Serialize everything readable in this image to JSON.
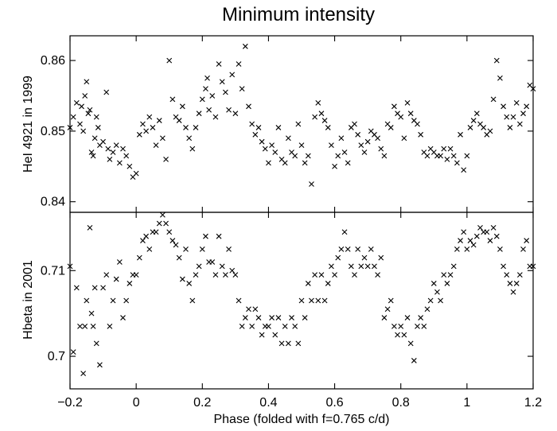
{
  "chart_data": [
    {
      "panel": "top",
      "type": "scatter",
      "title": "Minimum intensity",
      "ylabel": "HeI 4921 in 1999",
      "xlabel": "",
      "xlim": [
        -0.2,
        1.2
      ],
      "ylim": [
        0.8385,
        0.8635
      ],
      "x_ticks": [
        -0.2,
        0,
        0.2,
        0.4,
        0.6,
        0.8,
        1,
        1.2
      ],
      "y_ticks": [
        0.84,
        0.85,
        0.86
      ],
      "y_tick_labels": [
        "0.84",
        "0.85",
        "0.86"
      ],
      "marker": "x",
      "color": "#000000",
      "points": [
        [
          -0.2,
          0.8505
        ],
        [
          -0.19,
          0.852
        ],
        [
          -0.18,
          0.854
        ],
        [
          -0.17,
          0.851
        ],
        [
          -0.165,
          0.8535
        ],
        [
          -0.16,
          0.85
        ],
        [
          -0.155,
          0.855
        ],
        [
          -0.15,
          0.857
        ],
        [
          -0.145,
          0.8525
        ],
        [
          -0.14,
          0.853
        ],
        [
          -0.135,
          0.847
        ],
        [
          -0.13,
          0.8465
        ],
        [
          -0.125,
          0.849
        ],
        [
          -0.12,
          0.852
        ],
        [
          -0.115,
          0.8505
        ],
        [
          -0.11,
          0.848
        ],
        [
          -0.1,
          0.8485
        ],
        [
          -0.09,
          0.8555
        ],
        [
          -0.085,
          0.8475
        ],
        [
          -0.08,
          0.846
        ],
        [
          -0.07,
          0.847
        ],
        [
          -0.06,
          0.848
        ],
        [
          -0.05,
          0.8455
        ],
        [
          -0.04,
          0.8475
        ],
        [
          -0.03,
          0.8465
        ],
        [
          -0.02,
          0.845
        ],
        [
          -0.01,
          0.8435
        ],
        [
          0.0,
          0.844
        ],
        [
          0.01,
          0.8495
        ],
        [
          0.02,
          0.851
        ],
        [
          0.03,
          0.85
        ],
        [
          0.04,
          0.852
        ],
        [
          0.05,
          0.8505
        ],
        [
          0.06,
          0.848
        ],
        [
          0.07,
          0.8515
        ],
        [
          0.08,
          0.849
        ],
        [
          0.09,
          0.846
        ],
        [
          0.1,
          0.86
        ],
        [
          0.11,
          0.8545
        ],
        [
          0.12,
          0.852
        ],
        [
          0.13,
          0.8515
        ],
        [
          0.14,
          0.8535
        ],
        [
          0.15,
          0.8505
        ],
        [
          0.16,
          0.849
        ],
        [
          0.17,
          0.8475
        ],
        [
          0.18,
          0.8505
        ],
        [
          0.19,
          0.8525
        ],
        [
          0.2,
          0.8545
        ],
        [
          0.21,
          0.856
        ],
        [
          0.215,
          0.8575
        ],
        [
          0.22,
          0.853
        ],
        [
          0.23,
          0.855
        ],
        [
          0.24,
          0.852
        ],
        [
          0.25,
          0.8595
        ],
        [
          0.26,
          0.857
        ],
        [
          0.27,
          0.8555
        ],
        [
          0.28,
          0.853
        ],
        [
          0.29,
          0.858
        ],
        [
          0.3,
          0.8525
        ],
        [
          0.31,
          0.8595
        ],
        [
          0.32,
          0.856
        ],
        [
          0.33,
          0.862
        ],
        [
          0.34,
          0.8535
        ],
        [
          0.35,
          0.851
        ],
        [
          0.36,
          0.8495
        ],
        [
          0.37,
          0.8505
        ],
        [
          0.38,
          0.8485
        ],
        [
          0.39,
          0.8475
        ],
        [
          0.4,
          0.8455
        ],
        [
          0.41,
          0.848
        ],
        [
          0.42,
          0.847
        ],
        [
          0.43,
          0.8505
        ],
        [
          0.44,
          0.846
        ],
        [
          0.45,
          0.8455
        ],
        [
          0.46,
          0.849
        ],
        [
          0.47,
          0.847
        ],
        [
          0.48,
          0.8465
        ],
        [
          0.49,
          0.851
        ],
        [
          0.5,
          0.848
        ],
        [
          0.51,
          0.8455
        ],
        [
          0.52,
          0.8465
        ],
        [
          0.53,
          0.8425
        ],
        [
          0.54,
          0.852
        ],
        [
          0.55,
          0.854
        ],
        [
          0.56,
          0.8525
        ],
        [
          0.57,
          0.8515
        ],
        [
          0.58,
          0.8505
        ],
        [
          0.59,
          0.848
        ],
        [
          0.6,
          0.845
        ],
        [
          0.61,
          0.8465
        ],
        [
          0.62,
          0.849
        ],
        [
          0.63,
          0.847
        ],
        [
          0.64,
          0.8455
        ],
        [
          0.65,
          0.8505
        ],
        [
          0.66,
          0.851
        ],
        [
          0.67,
          0.8495
        ],
        [
          0.68,
          0.848
        ],
        [
          0.69,
          0.847
        ],
        [
          0.7,
          0.8485
        ],
        [
          0.71,
          0.85
        ],
        [
          0.72,
          0.8495
        ],
        [
          0.73,
          0.849
        ],
        [
          0.74,
          0.8475
        ],
        [
          0.75,
          0.8465
        ],
        [
          0.76,
          0.851
        ],
        [
          0.77,
          0.8505
        ],
        [
          0.78,
          0.8535
        ],
        [
          0.79,
          0.8525
        ],
        [
          0.8,
          0.852
        ],
        [
          0.81,
          0.849
        ],
        [
          0.82,
          0.854
        ],
        [
          0.83,
          0.8525
        ],
        [
          0.84,
          0.8515
        ],
        [
          0.85,
          0.851
        ],
        [
          0.86,
          0.8495
        ],
        [
          0.87,
          0.847
        ],
        [
          0.88,
          0.8465
        ],
        [
          0.89,
          0.8475
        ],
        [
          0.9,
          0.847
        ],
        [
          0.91,
          0.8465
        ],
        [
          0.92,
          0.8465
        ],
        [
          0.93,
          0.8475
        ],
        [
          0.94,
          0.846
        ],
        [
          0.95,
          0.8475
        ],
        [
          0.96,
          0.8465
        ],
        [
          0.97,
          0.8455
        ],
        [
          0.98,
          0.8495
        ],
        [
          0.99,
          0.8445
        ],
        [
          1.0,
          0.8465
        ],
        [
          1.01,
          0.8505
        ],
        [
          1.02,
          0.8515
        ],
        [
          1.03,
          0.8525
        ],
        [
          1.04,
          0.851
        ],
        [
          1.05,
          0.8505
        ],
        [
          1.06,
          0.8495
        ],
        [
          1.07,
          0.85
        ],
        [
          1.08,
          0.8545
        ],
        [
          1.09,
          0.86
        ],
        [
          1.1,
          0.8575
        ],
        [
          1.11,
          0.8535
        ],
        [
          1.12,
          0.852
        ],
        [
          1.13,
          0.8505
        ],
        [
          1.14,
          0.852
        ],
        [
          1.15,
          0.854
        ],
        [
          1.16,
          0.851
        ],
        [
          1.17,
          0.8525
        ],
        [
          1.18,
          0.8535
        ],
        [
          1.19,
          0.8565
        ],
        [
          1.2,
          0.856
        ]
      ]
    },
    {
      "panel": "bottom",
      "type": "scatter",
      "title": "",
      "ylabel": "Hbeta in 2001",
      "xlabel": "Phase (folded with f=0.765 c/d)",
      "xlim": [
        -0.2,
        1.2
      ],
      "ylim": [
        0.6962,
        0.7168
      ],
      "x_ticks": [
        -0.2,
        0,
        0.2,
        0.4,
        0.6,
        0.8,
        1,
        1.2
      ],
      "x_tick_labels": [
        "−0.2",
        "0",
        "0.2",
        "0.4",
        "0.6",
        "0.8",
        "1",
        "1.2"
      ],
      "y_ticks": [
        0.7,
        0.71
      ],
      "y_tick_labels": [
        "0.7",
        "0.71"
      ],
      "marker": "x",
      "color": "#000000",
      "points": [
        [
          -0.2,
          0.7105
        ],
        [
          -0.19,
          0.7005
        ],
        [
          -0.18,
          0.708
        ],
        [
          -0.17,
          0.7035
        ],
        [
          -0.16,
          0.698
        ],
        [
          -0.155,
          0.7035
        ],
        [
          -0.15,
          0.7065
        ],
        [
          -0.14,
          0.715
        ],
        [
          -0.135,
          0.705
        ],
        [
          -0.13,
          0.7035
        ],
        [
          -0.125,
          0.708
        ],
        [
          -0.12,
          0.7015
        ],
        [
          -0.11,
          0.699
        ],
        [
          -0.1,
          0.708
        ],
        [
          -0.09,
          0.7095
        ],
        [
          -0.08,
          0.7035
        ],
        [
          -0.07,
          0.7065
        ],
        [
          -0.06,
          0.709
        ],
        [
          -0.05,
          0.711
        ],
        [
          -0.04,
          0.7045
        ],
        [
          -0.03,
          0.7065
        ],
        [
          -0.02,
          0.7085
        ],
        [
          -0.01,
          0.7095
        ],
        [
          0.0,
          0.7095
        ],
        [
          0.01,
          0.7115
        ],
        [
          0.02,
          0.7135
        ],
        [
          0.03,
          0.714
        ],
        [
          0.04,
          0.7125
        ],
        [
          0.05,
          0.7145
        ],
        [
          0.06,
          0.7145
        ],
        [
          0.07,
          0.7155
        ],
        [
          0.08,
          0.7165
        ],
        [
          0.09,
          0.7155
        ],
        [
          0.1,
          0.7145
        ],
        [
          0.11,
          0.7135
        ],
        [
          0.12,
          0.713
        ],
        [
          0.13,
          0.7115
        ],
        [
          0.14,
          0.709
        ],
        [
          0.15,
          0.7125
        ],
        [
          0.16,
          0.7085
        ],
        [
          0.17,
          0.7065
        ],
        [
          0.18,
          0.7095
        ],
        [
          0.19,
          0.7105
        ],
        [
          0.2,
          0.7125
        ],
        [
          0.21,
          0.714
        ],
        [
          0.22,
          0.711
        ],
        [
          0.23,
          0.711
        ],
        [
          0.24,
          0.7095
        ],
        [
          0.25,
          0.714
        ],
        [
          0.26,
          0.7105
        ],
        [
          0.27,
          0.7095
        ],
        [
          0.28,
          0.7125
        ],
        [
          0.29,
          0.71
        ],
        [
          0.3,
          0.7095
        ],
        [
          0.31,
          0.7065
        ],
        [
          0.32,
          0.7035
        ],
        [
          0.33,
          0.7045
        ],
        [
          0.34,
          0.7055
        ],
        [
          0.35,
          0.7035
        ],
        [
          0.36,
          0.7055
        ],
        [
          0.37,
          0.7045
        ],
        [
          0.38,
          0.7025
        ],
        [
          0.39,
          0.7035
        ],
        [
          0.4,
          0.7035
        ],
        [
          0.41,
          0.7045
        ],
        [
          0.42,
          0.7025
        ],
        [
          0.43,
          0.7045
        ],
        [
          0.44,
          0.7015
        ],
        [
          0.45,
          0.7035
        ],
        [
          0.46,
          0.7015
        ],
        [
          0.47,
          0.7045
        ],
        [
          0.48,
          0.7035
        ],
        [
          0.49,
          0.7015
        ],
        [
          0.5,
          0.7065
        ],
        [
          0.51,
          0.7045
        ],
        [
          0.52,
          0.7085
        ],
        [
          0.53,
          0.7065
        ],
        [
          0.54,
          0.7095
        ],
        [
          0.55,
          0.7065
        ],
        [
          0.56,
          0.7095
        ],
        [
          0.57,
          0.7065
        ],
        [
          0.58,
          0.7085
        ],
        [
          0.59,
          0.7105
        ],
        [
          0.6,
          0.7095
        ],
        [
          0.61,
          0.7115
        ],
        [
          0.62,
          0.7125
        ],
        [
          0.63,
          0.7145
        ],
        [
          0.64,
          0.7125
        ],
        [
          0.65,
          0.7105
        ],
        [
          0.66,
          0.7095
        ],
        [
          0.67,
          0.7125
        ],
        [
          0.68,
          0.7105
        ],
        [
          0.69,
          0.7115
        ],
        [
          0.7,
          0.7105
        ],
        [
          0.71,
          0.7125
        ],
        [
          0.72,
          0.7105
        ],
        [
          0.73,
          0.7095
        ],
        [
          0.74,
          0.7115
        ],
        [
          0.75,
          0.7045
        ],
        [
          0.76,
          0.7055
        ],
        [
          0.77,
          0.7065
        ],
        [
          0.78,
          0.7035
        ],
        [
          0.79,
          0.7025
        ],
        [
          0.8,
          0.7035
        ],
        [
          0.81,
          0.7025
        ],
        [
          0.82,
          0.7045
        ],
        [
          0.83,
          0.7015
        ],
        [
          0.84,
          0.6995
        ],
        [
          0.85,
          0.7035
        ],
        [
          0.86,
          0.7045
        ],
        [
          0.87,
          0.7035
        ],
        [
          0.88,
          0.7055
        ],
        [
          0.89,
          0.7065
        ],
        [
          0.9,
          0.7085
        ],
        [
          0.91,
          0.7075
        ],
        [
          0.92,
          0.7065
        ],
        [
          0.93,
          0.7095
        ],
        [
          0.94,
          0.7085
        ],
        [
          0.95,
          0.7095
        ],
        [
          0.96,
          0.7105
        ],
        [
          0.97,
          0.7125
        ],
        [
          0.98,
          0.7135
        ],
        [
          0.99,
          0.7145
        ],
        [
          1.0,
          0.7125
        ],
        [
          1.01,
          0.7135
        ],
        [
          1.02,
          0.713
        ],
        [
          1.03,
          0.714
        ],
        [
          1.04,
          0.715
        ],
        [
          1.05,
          0.7145
        ],
        [
          1.06,
          0.7145
        ],
        [
          1.07,
          0.7135
        ],
        [
          1.08,
          0.715
        ],
        [
          1.09,
          0.714
        ],
        [
          1.1,
          0.7125
        ],
        [
          1.11,
          0.7105
        ],
        [
          1.12,
          0.7095
        ],
        [
          1.13,
          0.7085
        ],
        [
          1.14,
          0.7075
        ],
        [
          1.15,
          0.7085
        ],
        [
          1.16,
          0.7095
        ],
        [
          1.17,
          0.7125
        ],
        [
          1.18,
          0.7135
        ],
        [
          1.19,
          0.7105
        ],
        [
          1.2,
          0.7105
        ]
      ]
    }
  ]
}
